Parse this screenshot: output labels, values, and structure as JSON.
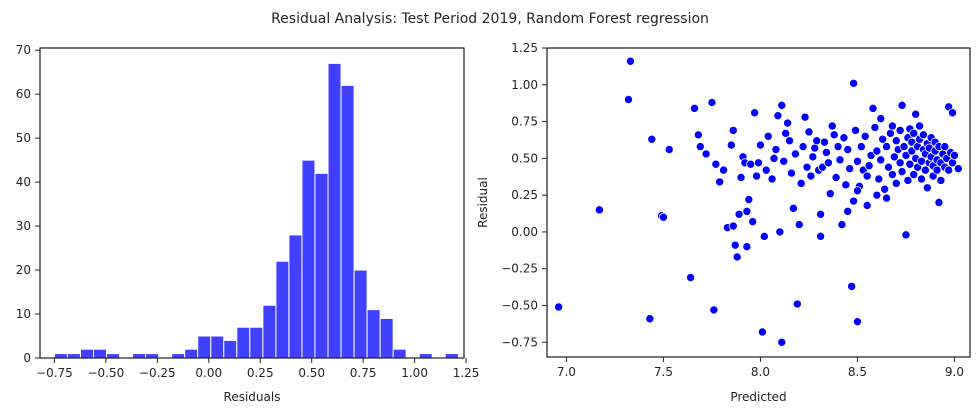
{
  "figure": {
    "suptitle": "Residual Analysis: Test Period 2019, Random Forest regression"
  },
  "chart_data": [
    {
      "type": "bar",
      "xlabel": "Residuals",
      "ylabel": "",
      "xlim": [
        -0.82,
        1.24
      ],
      "ylim": [
        0,
        70.5
      ],
      "xticks": [
        -0.75,
        -0.5,
        -0.25,
        0.0,
        0.25,
        0.5,
        0.75,
        1.0,
        1.25
      ],
      "xtick_labels": [
        "−0.75",
        "−0.50",
        "−0.25",
        "0.00",
        "0.25",
        "0.50",
        "0.75",
        "1.00",
        "1.25"
      ],
      "yticks": [
        0,
        10,
        20,
        30,
        40,
        50,
        60,
        70
      ],
      "ytick_labels": [
        "0",
        "10",
        "20",
        "30",
        "40",
        "50",
        "60",
        "70"
      ],
      "bin_start": -0.75,
      "bin_width": 0.0633,
      "counts": [
        1,
        1,
        2,
        2,
        1,
        0,
        1,
        1,
        0,
        1,
        2,
        5,
        5,
        4,
        7,
        7,
        12,
        22,
        28,
        45,
        42,
        67,
        62,
        20,
        11,
        9,
        2,
        0,
        1,
        0,
        1
      ],
      "color": "#0000ff",
      "alpha": 0.75
    },
    {
      "type": "scatter",
      "xlabel": "Predicted",
      "ylabel": "Residual",
      "xlim": [
        6.9,
        9.08
      ],
      "ylim": [
        -0.85,
        1.25
      ],
      "xticks": [
        7.0,
        7.5,
        8.0,
        8.5,
        9.0
      ],
      "xtick_labels": [
        "7.0",
        "7.5",
        "8.0",
        "8.5",
        "9.0"
      ],
      "yticks": [
        -0.75,
        -0.5,
        -0.25,
        0.0,
        0.25,
        0.5,
        0.75,
        1.0,
        1.25
      ],
      "ytick_labels": [
        "−0.75",
        "−0.50",
        "−0.25",
        "0.00",
        "0.25",
        "0.50",
        "0.75",
        "1.00",
        "1.25"
      ],
      "color": "#0000ff",
      "points": [
        [
          6.96,
          -0.51
        ],
        [
          7.17,
          0.15
        ],
        [
          7.33,
          1.16
        ],
        [
          7.32,
          0.9
        ],
        [
          7.43,
          -0.59
        ],
        [
          7.44,
          0.63
        ],
        [
          7.49,
          0.11
        ],
        [
          7.5,
          0.1
        ],
        [
          7.53,
          0.56
        ],
        [
          7.64,
          -0.31
        ],
        [
          7.66,
          0.84
        ],
        [
          7.68,
          0.66
        ],
        [
          7.69,
          0.58
        ],
        [
          7.72,
          0.53
        ],
        [
          7.75,
          0.88
        ],
        [
          7.76,
          -0.53
        ],
        [
          7.77,
          0.46
        ],
        [
          7.79,
          0.34
        ],
        [
          7.81,
          0.42
        ],
        [
          7.83,
          0.03
        ],
        [
          7.85,
          0.59
        ],
        [
          7.86,
          0.69
        ],
        [
          7.86,
          0.04
        ],
        [
          7.87,
          -0.09
        ],
        [
          7.88,
          -0.17
        ],
        [
          7.89,
          0.12
        ],
        [
          7.9,
          0.37
        ],
        [
          7.91,
          0.51
        ],
        [
          7.92,
          0.47
        ],
        [
          7.93,
          0.14
        ],
        [
          7.93,
          -0.1
        ],
        [
          7.94,
          0.22
        ],
        [
          7.95,
          0.46
        ],
        [
          7.96,
          0.07
        ],
        [
          7.97,
          0.81
        ],
        [
          7.98,
          0.38
        ],
        [
          7.99,
          0.47
        ],
        [
          8.0,
          0.59
        ],
        [
          8.01,
          -0.68
        ],
        [
          8.02,
          -0.03
        ],
        [
          8.03,
          0.42
        ],
        [
          8.04,
          0.65
        ],
        [
          8.06,
          0.36
        ],
        [
          8.07,
          0.5
        ],
        [
          8.08,
          0.56
        ],
        [
          8.09,
          0.79
        ],
        [
          8.1,
          0.0
        ],
        [
          8.11,
          -0.75
        ],
        [
          8.11,
          0.86
        ],
        [
          8.12,
          0.48
        ],
        [
          8.13,
          0.67
        ],
        [
          8.14,
          0.74
        ],
        [
          8.15,
          0.62
        ],
        [
          8.16,
          0.4
        ],
        [
          8.17,
          0.16
        ],
        [
          8.18,
          0.53
        ],
        [
          8.19,
          -0.49
        ],
        [
          8.2,
          0.05
        ],
        [
          8.21,
          0.33
        ],
        [
          8.22,
          0.58
        ],
        [
          8.23,
          0.78
        ],
        [
          8.24,
          0.44
        ],
        [
          8.25,
          0.68
        ],
        [
          8.26,
          0.38
        ],
        [
          8.27,
          0.51
        ],
        [
          8.28,
          0.57
        ],
        [
          8.29,
          0.62
        ],
        [
          8.3,
          0.42
        ],
        [
          8.31,
          -0.03
        ],
        [
          8.31,
          0.12
        ],
        [
          8.32,
          0.44
        ],
        [
          8.33,
          0.61
        ],
        [
          8.34,
          0.54
        ],
        [
          8.35,
          0.47
        ],
        [
          8.36,
          0.26
        ],
        [
          8.37,
          0.72
        ],
        [
          8.38,
          0.66
        ],
        [
          8.39,
          0.37
        ],
        [
          8.4,
          0.58
        ],
        [
          8.41,
          0.49
        ],
        [
          8.42,
          0.05
        ],
        [
          8.43,
          0.64
        ],
        [
          8.44,
          0.32
        ],
        [
          8.45,
          0.56
        ],
        [
          8.46,
          0.43
        ],
        [
          8.47,
          -0.37
        ],
        [
          8.48,
          1.01
        ],
        [
          8.48,
          0.21
        ],
        [
          8.49,
          0.69
        ],
        [
          8.5,
          -0.61
        ],
        [
          8.5,
          0.48
        ],
        [
          8.51,
          0.31
        ],
        [
          8.52,
          0.58
        ],
        [
          8.53,
          0.42
        ],
        [
          8.54,
          0.65
        ],
        [
          8.55,
          0.38
        ],
        [
          8.56,
          0.45
        ],
        [
          8.57,
          0.52
        ],
        [
          8.58,
          0.84
        ],
        [
          8.59,
          0.71
        ],
        [
          8.6,
          0.55
        ],
        [
          8.61,
          0.36
        ],
        [
          8.62,
          0.77
        ],
        [
          8.62,
          0.49
        ],
        [
          8.63,
          0.63
        ],
        [
          8.64,
          0.29
        ],
        [
          8.65,
          0.58
        ],
        [
          8.66,
          0.44
        ],
        [
          8.67,
          0.67
        ],
        [
          8.68,
          0.72
        ],
        [
          8.68,
          0.39
        ],
        [
          8.69,
          0.51
        ],
        [
          8.7,
          0.62
        ],
        [
          8.7,
          0.33
        ],
        [
          8.71,
          0.56
        ],
        [
          8.72,
          0.47
        ],
        [
          8.72,
          0.69
        ],
        [
          8.73,
          0.86
        ],
        [
          8.73,
          0.41
        ],
        [
          8.74,
          0.58
        ],
        [
          8.75,
          -0.02
        ],
        [
          8.75,
          0.52
        ],
        [
          8.76,
          0.64
        ],
        [
          8.76,
          0.35
        ],
        [
          8.77,
          0.7
        ],
        [
          8.77,
          0.46
        ],
        [
          8.78,
          0.61
        ],
        [
          8.78,
          0.55
        ],
        [
          8.79,
          0.39
        ],
        [
          8.79,
          0.67
        ],
        [
          8.8,
          0.8
        ],
        [
          8.8,
          0.5
        ],
        [
          8.81,
          0.58
        ],
        [
          8.81,
          0.44
        ],
        [
          8.82,
          0.63
        ],
        [
          8.82,
          0.72
        ],
        [
          8.83,
          0.48
        ],
        [
          8.83,
          0.36
        ],
        [
          8.84,
          0.56
        ],
        [
          8.84,
          0.66
        ],
        [
          8.85,
          0.42
        ],
        [
          8.85,
          0.53
        ],
        [
          8.86,
          0.6
        ],
        [
          8.86,
          0.3
        ],
        [
          8.87,
          0.47
        ],
        [
          8.87,
          0.57
        ],
        [
          8.88,
          0.51
        ],
        [
          8.88,
          0.64
        ],
        [
          8.89,
          0.38
        ],
        [
          8.89,
          0.45
        ],
        [
          8.9,
          0.55
        ],
        [
          8.9,
          0.61
        ],
        [
          8.91,
          0.42
        ],
        [
          8.91,
          0.49
        ],
        [
          8.92,
          0.2
        ],
        [
          8.92,
          0.58
        ],
        [
          8.93,
          0.47
        ],
        [
          8.93,
          0.35
        ],
        [
          8.94,
          0.53
        ],
        [
          8.95,
          0.44
        ],
        [
          8.95,
          0.58
        ],
        [
          8.96,
          0.5
        ],
        [
          8.97,
          0.85
        ],
        [
          8.97,
          0.42
        ],
        [
          8.98,
          0.54
        ],
        [
          8.99,
          0.81
        ],
        [
          8.99,
          0.47
        ],
        [
          9.0,
          0.52
        ],
        [
          9.02,
          0.43
        ],
        [
          8.6,
          0.25
        ],
        [
          8.65,
          0.23
        ],
        [
          8.55,
          0.18
        ],
        [
          8.5,
          0.28
        ],
        [
          8.45,
          0.14
        ]
      ]
    }
  ]
}
